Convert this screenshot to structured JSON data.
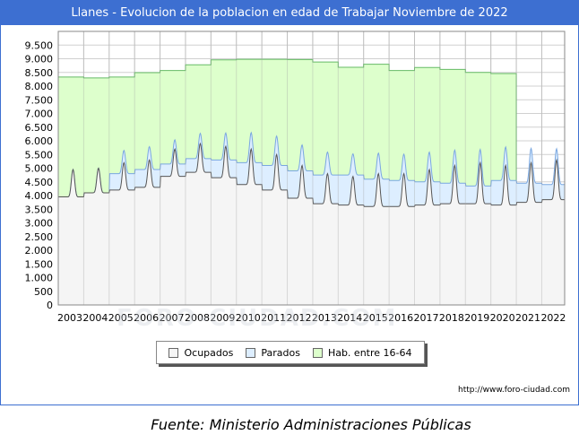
{
  "title": "Llanes - Evolucion de la poblacion en edad de Trabajar Noviembre de 2022",
  "source": "Fuente: Ministerio Administraciones Públicas",
  "url": "http://www.foro-ciudad.com",
  "watermark": "FORO-CIUDAD.COM",
  "colors": {
    "ocupados_fill": "#f5f5f5",
    "ocupados_line": "#555555",
    "parados_fill": "#ddeeff",
    "parados_line": "#7aa7e0",
    "hab_fill": "#ddffcc",
    "hab_line": "#66bb66",
    "header": "#3d6fd1"
  },
  "chart_data": {
    "type": "area",
    "title": "Llanes - Evolucion de la poblacion en edad de Trabajar Noviembre de 2022",
    "xlabel": "",
    "ylabel": "",
    "xlim": [
      2003,
      2022.9
    ],
    "ylim": [
      0,
      10000
    ],
    "yticks": [
      0,
      500,
      1000,
      1500,
      2000,
      2500,
      3000,
      3500,
      4000,
      4500,
      5000,
      5500,
      6000,
      6500,
      7000,
      7500,
      8000,
      8500,
      9000,
      9500
    ],
    "ytick_labels": [
      "0",
      "500",
      "1.000",
      "1.500",
      "2.000",
      "2.500",
      "3.000",
      "3.500",
      "4.000",
      "4.500",
      "5.000",
      "5.500",
      "6.000",
      "6.500",
      "7.000",
      "7.500",
      "8.000",
      "8.500",
      "9.000",
      "9.500"
    ],
    "xticks": [
      2003,
      2004,
      2005,
      2006,
      2007,
      2008,
      2009,
      2010,
      2011,
      2012,
      2013,
      2014,
      2015,
      2016,
      2017,
      2018,
      2019,
      2020,
      2021,
      2022
    ],
    "grid": true,
    "legend_position": "bottom",
    "legend": [
      "Ocupados",
      "Parados",
      "Hab. entre 16-64"
    ],
    "hab_entre_16_64": {
      "years": [
        2003,
        2004,
        2005,
        2006,
        2007,
        2008,
        2009,
        2010,
        2011,
        2012,
        2013,
        2014,
        2015,
        2016,
        2017,
        2018,
        2019,
        2020
      ],
      "values": [
        8330,
        8300,
        8330,
        8490,
        8570,
        8780,
        8960,
        8980,
        8980,
        8970,
        8880,
        8690,
        8800,
        8570,
        8680,
        8610,
        8500,
        8460
      ]
    },
    "ocupados_annual": {
      "years": [
        2003,
        2004,
        2005,
        2006,
        2007,
        2008,
        2009,
        2010,
        2011,
        2012,
        2013,
        2014,
        2015,
        2016,
        2017,
        2018,
        2019,
        2020,
        2021,
        2022
      ],
      "trough": [
        3950,
        4100,
        4200,
        4300,
        4700,
        4850,
        4650,
        4400,
        4200,
        3900,
        3700,
        3650,
        3600,
        3600,
        3650,
        3700,
        3700,
        3650,
        3750,
        3850
      ],
      "peak": [
        4950,
        5000,
        5200,
        5300,
        5700,
        5900,
        5800,
        5700,
        5500,
        5100,
        4800,
        4700,
        4800,
        4800,
        4950,
        5100,
        5200,
        5100,
        5200,
        5300
      ]
    },
    "parados_annual": {
      "years": [
        2003,
        2004,
        2005,
        2006,
        2007,
        2008,
        2009,
        2010,
        2011,
        2012,
        2013,
        2014,
        2015,
        2016,
        2017,
        2018,
        2019,
        2020,
        2021,
        2022
      ],
      "values": [
        0,
        0,
        600,
        650,
        450,
        500,
        650,
        800,
        900,
        1000,
        1050,
        1100,
        1000,
        950,
        850,
        750,
        650,
        900,
        700,
        550
      ]
    }
  }
}
